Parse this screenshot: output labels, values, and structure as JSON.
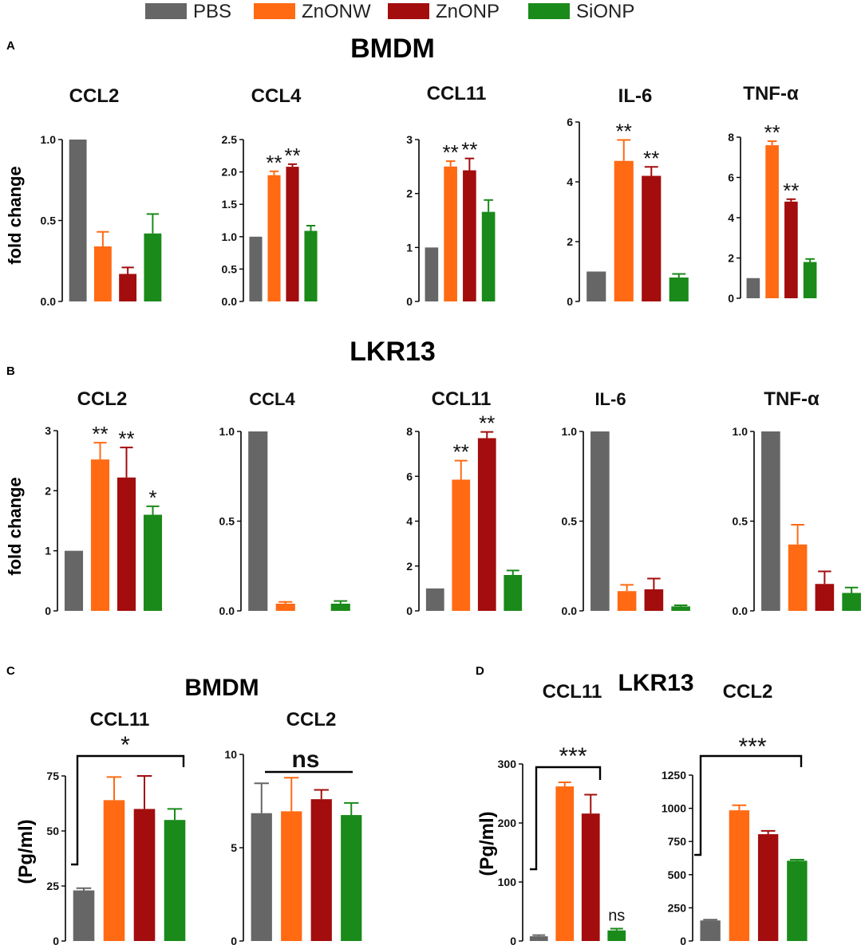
{
  "legend": [
    {
      "label": "PBS",
      "color": "#666666"
    },
    {
      "label": "ZnONW",
      "color": "#ff6a13"
    },
    {
      "label": "ZnONP",
      "color": "#a30d0d"
    },
    {
      "label": "SiONP",
      "color": "#1a8a1a"
    }
  ],
  "panels": [
    {
      "letter": "A",
      "title": "BMDM",
      "ylabel": "fold change"
    },
    {
      "letter": "B",
      "title": "LKR13",
      "ylabel": "fold change"
    },
    {
      "letter": "C",
      "title": "BMDM",
      "ylabel": "(Pg/ml)"
    },
    {
      "letter": "D",
      "title": "LKR13",
      "ylabel": "(Pg/ml)"
    }
  ],
  "chart_data": [
    {
      "type": "bar",
      "panel": "A",
      "title": "CCL2",
      "categories": [
        "PBS",
        "ZnONW",
        "ZnONP",
        "SiONP"
      ],
      "values": [
        1.0,
        0.34,
        0.17,
        0.42
      ],
      "errors": [
        0,
        0.09,
        0.04,
        0.12
      ],
      "ylim": [
        0,
        1.0
      ],
      "yticks": [
        0.0,
        0.5,
        1.0
      ],
      "tick_labels": [
        "0.0",
        "0.5",
        "1.0"
      ],
      "ylabel": "fold change",
      "sig": [
        "",
        "",
        "",
        ""
      ]
    },
    {
      "type": "bar",
      "panel": "A",
      "title": "CCL4",
      "categories": [
        "PBS",
        "ZnONW",
        "ZnONP",
        "SiONP"
      ],
      "values": [
        1.0,
        1.95,
        2.08,
        1.09
      ],
      "errors": [
        0,
        0.06,
        0.04,
        0.08
      ],
      "ylim": [
        0,
        2.5
      ],
      "yticks": [
        0.0,
        0.5,
        1.0,
        1.5,
        2.0,
        2.5
      ],
      "tick_labels": [
        "0.0",
        "0.5",
        "1.0",
        "1.5",
        "2.0",
        "2.5"
      ],
      "sig": [
        "",
        "**",
        "**",
        ""
      ]
    },
    {
      "type": "bar",
      "panel": "A",
      "title": "CCL11",
      "categories": [
        "PBS",
        "ZnONW",
        "ZnONP",
        "SiONP"
      ],
      "values": [
        1.0,
        2.5,
        2.43,
        1.66
      ],
      "errors": [
        0,
        0.1,
        0.22,
        0.22
      ],
      "ylim": [
        0,
        3
      ],
      "yticks": [
        0,
        1,
        2,
        3
      ],
      "tick_labels": [
        "0",
        "1",
        "2",
        "3"
      ],
      "sig": [
        "",
        "**",
        "**",
        ""
      ]
    },
    {
      "type": "bar",
      "panel": "A",
      "title": "IL-6",
      "categories": [
        "PBS",
        "ZnONW",
        "ZnONP",
        "SiONP"
      ],
      "values": [
        1.0,
        4.7,
        4.2,
        0.8
      ],
      "errors": [
        0,
        0.7,
        0.3,
        0.12
      ],
      "ylim": [
        0,
        6
      ],
      "yticks": [
        0,
        2,
        4,
        6
      ],
      "tick_labels": [
        "0",
        "2",
        "4",
        "6"
      ],
      "sig": [
        "",
        "**",
        "**",
        ""
      ]
    },
    {
      "type": "bar",
      "panel": "A",
      "title": "TNF-α",
      "categories": [
        "PBS",
        "ZnONW",
        "ZnONP",
        "SiONP"
      ],
      "values": [
        1.0,
        7.6,
        4.8,
        1.8
      ],
      "errors": [
        0,
        0.2,
        0.12,
        0.15
      ],
      "ylim": [
        0,
        8
      ],
      "yticks": [
        0,
        2,
        4,
        6,
        8
      ],
      "tick_labels": [
        "0",
        "2",
        "4",
        "6",
        "8"
      ],
      "sig": [
        "",
        "**",
        "**",
        ""
      ]
    },
    {
      "type": "bar",
      "panel": "B",
      "title": "CCL2",
      "categories": [
        "PBS",
        "ZnONW",
        "ZnONP",
        "SiONP"
      ],
      "values": [
        1.0,
        2.52,
        2.22,
        1.6
      ],
      "errors": [
        0,
        0.28,
        0.5,
        0.14
      ],
      "ylim": [
        0,
        3
      ],
      "yticks": [
        0,
        1,
        2,
        3
      ],
      "tick_labels": [
        "0",
        "1",
        "2",
        "3"
      ],
      "ylabel": "fold change",
      "sig": [
        "",
        "**",
        "**",
        "*"
      ]
    },
    {
      "type": "bar",
      "panel": "B",
      "title": "CCL4",
      "categories": [
        "PBS",
        "ZnONW",
        "ZnONP",
        "SiONP"
      ],
      "values": [
        1.0,
        0.04,
        0.0,
        0.04
      ],
      "errors": [
        0,
        0.01,
        0,
        0.015
      ],
      "ylim": [
        0,
        1.0
      ],
      "yticks": [
        0.0,
        0.5,
        1.0
      ],
      "tick_labels": [
        "0.0",
        "0.5",
        "1.0"
      ],
      "sig": [
        "",
        "",
        "",
        ""
      ]
    },
    {
      "type": "bar",
      "panel": "B",
      "title": "CCL11",
      "categories": [
        "PBS",
        "ZnONW",
        "ZnONP",
        "SiONP"
      ],
      "values": [
        1.0,
        5.85,
        7.7,
        1.6
      ],
      "errors": [
        0,
        0.85,
        0.28,
        0.2
      ],
      "ylim": [
        0,
        8
      ],
      "yticks": [
        0,
        2,
        4,
        6,
        8
      ],
      "tick_labels": [
        "0",
        "2",
        "4",
        "6",
        "8"
      ],
      "sig": [
        "",
        "**",
        "**",
        ""
      ]
    },
    {
      "type": "bar",
      "panel": "B",
      "title": "IL-6",
      "categories": [
        "PBS",
        "ZnONW",
        "ZnONP",
        "SiONP"
      ],
      "values": [
        1.0,
        0.11,
        0.12,
        0.025
      ],
      "errors": [
        0,
        0.035,
        0.06,
        0.006
      ],
      "ylim": [
        0,
        1.0
      ],
      "yticks": [
        0.0,
        0.5,
        1.0
      ],
      "tick_labels": [
        "0.0",
        "0.5",
        "1.0"
      ],
      "sig": [
        "",
        "",
        "",
        ""
      ]
    },
    {
      "type": "bar",
      "panel": "B",
      "title": "TNF-α",
      "categories": [
        "PBS",
        "ZnONW",
        "ZnONP",
        "SiONP"
      ],
      "values": [
        1.0,
        0.37,
        0.15,
        0.1
      ],
      "errors": [
        0,
        0.11,
        0.07,
        0.03
      ],
      "ylim": [
        0,
        1.0
      ],
      "yticks": [
        0.0,
        0.5,
        1.0
      ],
      "tick_labels": [
        "0.0",
        "0.5",
        "1.0"
      ],
      "sig": [
        "",
        "",
        "",
        ""
      ]
    },
    {
      "type": "bar",
      "panel": "C",
      "title": "CCL11",
      "categories": [
        "PBS",
        "ZnONW",
        "ZnONP",
        "SiONP"
      ],
      "values": [
        23,
        64,
        60,
        55
      ],
      "errors": [
        1,
        10.5,
        15,
        5
      ],
      "ylim": [
        0,
        75
      ],
      "yticks": [
        0,
        25,
        50,
        75
      ],
      "tick_labels": [
        "0",
        "25",
        "50",
        "75"
      ],
      "ylabel": "(Pg/ml)",
      "sig": [
        "",
        "",
        "",
        ""
      ],
      "bracket_label": "*"
    },
    {
      "type": "bar",
      "panel": "C",
      "title": "CCL2",
      "categories": [
        "PBS",
        "ZnONW",
        "ZnONP",
        "SiONP"
      ],
      "values": [
        6.85,
        6.95,
        7.6,
        6.75
      ],
      "errors": [
        1.6,
        1.8,
        0.5,
        0.65
      ],
      "ylim": [
        0,
        10
      ],
      "yticks": [
        0,
        5,
        10
      ],
      "tick_labels": [
        "0",
        "5",
        "10"
      ],
      "sig": [
        "",
        "",
        "",
        ""
      ],
      "bracket_label": "ns"
    },
    {
      "type": "bar",
      "panel": "D",
      "title": "CCL11",
      "categories": [
        "PBS",
        "ZnONW",
        "ZnONP",
        "SiONP"
      ],
      "values": [
        8,
        262,
        216,
        18
      ],
      "errors": [
        2,
        7,
        32,
        3
      ],
      "ylim": [
        0,
        300
      ],
      "yticks": [
        0,
        100,
        200,
        300
      ],
      "tick_labels": [
        "0",
        "100",
        "200",
        "300"
      ],
      "ylabel": "(Pg/ml)",
      "sig": [
        "",
        "",
        "",
        "ns"
      ],
      "bracket_label": "***"
    },
    {
      "type": "bar",
      "panel": "D",
      "title": "CCL2",
      "categories": [
        "PBS",
        "ZnONW",
        "ZnONP",
        "SiONP"
      ],
      "values": [
        155,
        985,
        805,
        605
      ],
      "errors": [
        6,
        38,
        25,
        8
      ],
      "ylim": [
        0,
        1250
      ],
      "yticks": [
        0,
        250,
        500,
        750,
        1000,
        1250
      ],
      "tick_labels": [
        "0",
        "250",
        "500",
        "750",
        "1000",
        "1250"
      ],
      "sig": [
        "",
        "",
        "",
        ""
      ],
      "bracket_label": "***"
    }
  ]
}
